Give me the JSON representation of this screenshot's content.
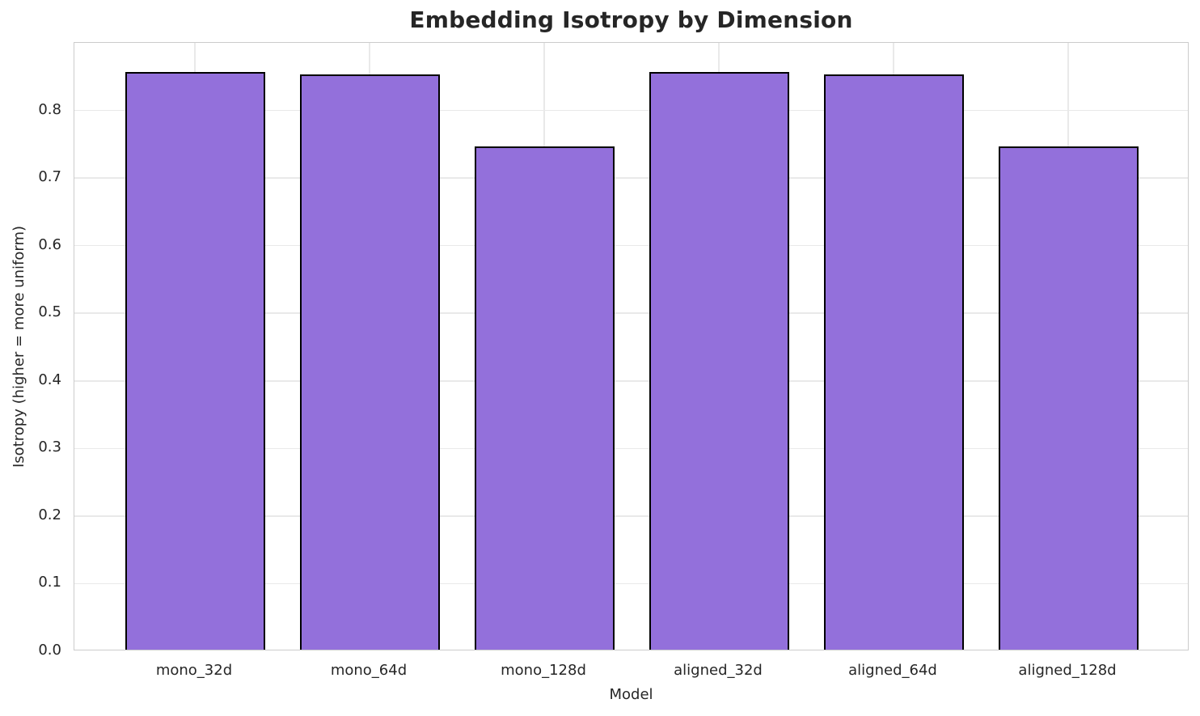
{
  "chart_data": {
    "type": "bar",
    "title": "Embedding Isotropy by Dimension",
    "xlabel": "Model",
    "ylabel": "Isotropy (higher = more uniform)",
    "categories": [
      "mono_32d",
      "mono_64d",
      "mono_128d",
      "aligned_32d",
      "aligned_64d",
      "aligned_128d"
    ],
    "values": [
      0.855,
      0.851,
      0.744,
      0.855,
      0.851,
      0.744
    ],
    "ylim": [
      0,
      0.9
    ],
    "yticks": [
      0.0,
      0.1,
      0.2,
      0.3,
      0.4,
      0.5,
      0.6,
      0.7,
      0.8
    ],
    "ytick_labels": [
      "0.0",
      "0.1",
      "0.2",
      "0.3",
      "0.4",
      "0.5",
      "0.6",
      "0.7",
      "0.8"
    ],
    "grid": true,
    "legend": "none",
    "colors": {
      "bar_fill": "#9370DB",
      "bar_edge": "#000000",
      "grid": "#e9e9e9",
      "spine": "#cccccc",
      "text": "#262626",
      "background": "#ffffff"
    }
  }
}
